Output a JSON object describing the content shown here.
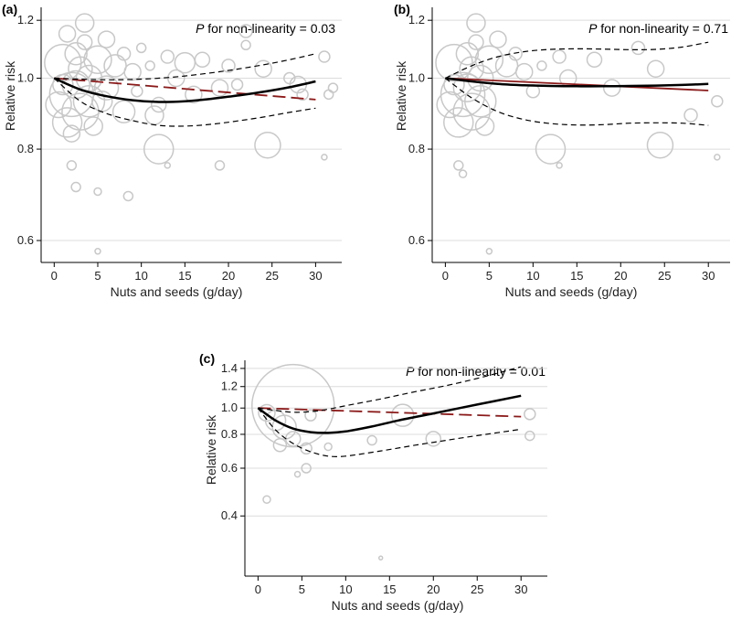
{
  "colors": {
    "spline": "#000000",
    "ci": "#000000",
    "linear": "#8b1a1a",
    "bubble": "#c8c8c8",
    "grid": "#dcdcdc"
  },
  "chart_data": [
    {
      "panel": "(a)",
      "type": "line",
      "scale": "log",
      "annotation_p": "P",
      "annotation_text": " for non-linearity = 0.03",
      "xlabel": "Nuts and seeds (g/day)",
      "ylabel": "Relative risk",
      "xlim": [
        -1.5,
        33
      ],
      "ylim": [
        0.56,
        1.25
      ],
      "xticks": [
        0,
        5,
        10,
        15,
        20,
        25,
        30
      ],
      "xtick_labels": [
        "0",
        "5",
        "10",
        "15",
        "20",
        "25",
        "30"
      ],
      "yticks": [
        0.6,
        0.8,
        1.0,
        1.2
      ],
      "ytick_labels": [
        "0.6",
        "0.8",
        "1.0",
        "1.2"
      ],
      "linear_dashed": true,
      "spline": [
        [
          0,
          1.0
        ],
        [
          3,
          0.965
        ],
        [
          6,
          0.945
        ],
        [
          9,
          0.933
        ],
        [
          12,
          0.928
        ],
        [
          15,
          0.93
        ],
        [
          18,
          0.937
        ],
        [
          21,
          0.947
        ],
        [
          24,
          0.958
        ],
        [
          27,
          0.972
        ],
        [
          30,
          0.99
        ]
      ],
      "ci_upper": [
        [
          0,
          1.0
        ],
        [
          3,
          0.997
        ],
        [
          6,
          0.995
        ],
        [
          9,
          0.996
        ],
        [
          12,
          1.0
        ],
        [
          15,
          1.007
        ],
        [
          18,
          1.017
        ],
        [
          21,
          1.029
        ],
        [
          24,
          1.043
        ],
        [
          27,
          1.06
        ],
        [
          30,
          1.08
        ]
      ],
      "ci_lower": [
        [
          0,
          1.0
        ],
        [
          3,
          0.93
        ],
        [
          6,
          0.895
        ],
        [
          9,
          0.875
        ],
        [
          12,
          0.862
        ],
        [
          15,
          0.86
        ],
        [
          18,
          0.865
        ],
        [
          21,
          0.874
        ],
        [
          24,
          0.885
        ],
        [
          27,
          0.898
        ],
        [
          30,
          0.91
        ]
      ],
      "linear": [
        [
          0,
          1.0
        ],
        [
          30,
          0.935
        ]
      ],
      "bubbles": [
        {
          "x": 0.5,
          "y": 0.92,
          "s": 14
        },
        {
          "x": 1,
          "y": 1.05,
          "s": 20
        },
        {
          "x": 1.5,
          "y": 0.87,
          "s": 16
        },
        {
          "x": 2,
          "y": 0.95,
          "s": 24
        },
        {
          "x": 2.5,
          "y": 1.08,
          "s": 12
        },
        {
          "x": 3,
          "y": 0.9,
          "s": 20
        },
        {
          "x": 3.5,
          "y": 1.12,
          "s": 8
        },
        {
          "x": 4,
          "y": 1.0,
          "s": 14
        },
        {
          "x": 1,
          "y": 0.98,
          "s": 11
        },
        {
          "x": 2,
          "y": 0.84,
          "s": 9
        },
        {
          "x": 3,
          "y": 1.03,
          "s": 13
        },
        {
          "x": 4,
          "y": 0.93,
          "s": 17
        },
        {
          "x": 5,
          "y": 1.06,
          "s": 15
        },
        {
          "x": 4.5,
          "y": 0.86,
          "s": 10
        },
        {
          "x": 3.5,
          "y": 1.19,
          "s": 10
        },
        {
          "x": 6,
          "y": 1.13,
          "s": 9
        },
        {
          "x": 6,
          "y": 0.97,
          "s": 13
        },
        {
          "x": 7,
          "y": 1.04,
          "s": 12
        },
        {
          "x": 1.5,
          "y": 1.15,
          "s": 9
        },
        {
          "x": 8,
          "y": 1.08,
          "s": 7
        },
        {
          "x": 8,
          "y": 0.9,
          "s": 12
        },
        {
          "x": 9,
          "y": 1.02,
          "s": 9
        },
        {
          "x": 9.5,
          "y": 0.96,
          "s": 6
        },
        {
          "x": 10,
          "y": 1.1,
          "s": 5
        },
        {
          "x": 11,
          "y": 1.04,
          "s": 5
        },
        {
          "x": 12,
          "y": 0.8,
          "s": 16
        },
        {
          "x": 12,
          "y": 0.92,
          "s": 8
        },
        {
          "x": 13,
          "y": 1.07,
          "s": 7
        },
        {
          "x": 14,
          "y": 1.0,
          "s": 9
        },
        {
          "x": 15,
          "y": 1.05,
          "s": 11
        },
        {
          "x": 16,
          "y": 0.95,
          "s": 9
        },
        {
          "x": 17,
          "y": 1.06,
          "s": 8
        },
        {
          "x": 19,
          "y": 0.97,
          "s": 9
        },
        {
          "x": 20,
          "y": 1.04,
          "s": 7
        },
        {
          "x": 21,
          "y": 0.98,
          "s": 6
        },
        {
          "x": 22,
          "y": 1.16,
          "s": 7
        },
        {
          "x": 22,
          "y": 1.11,
          "s": 5
        },
        {
          "x": 24,
          "y": 1.03,
          "s": 9
        },
        {
          "x": 24.5,
          "y": 0.81,
          "s": 14
        },
        {
          "x": 27,
          "y": 1.0,
          "s": 6
        },
        {
          "x": 28,
          "y": 0.98,
          "s": 9
        },
        {
          "x": 28.5,
          "y": 0.95,
          "s": 6
        },
        {
          "x": 31,
          "y": 1.07,
          "s": 6
        },
        {
          "x": 31.5,
          "y": 0.95,
          "s": 5
        },
        {
          "x": 32,
          "y": 0.97,
          "s": 5
        },
        {
          "x": 31,
          "y": 0.78,
          "s": 3
        },
        {
          "x": 2,
          "y": 0.76,
          "s": 5
        },
        {
          "x": 2.5,
          "y": 0.71,
          "s": 5
        },
        {
          "x": 5,
          "y": 0.7,
          "s": 4
        },
        {
          "x": 8.5,
          "y": 0.69,
          "s": 5
        },
        {
          "x": 5,
          "y": 0.58,
          "s": 3
        },
        {
          "x": 13,
          "y": 0.76,
          "s": 3
        },
        {
          "x": 19,
          "y": 0.76,
          "s": 5
        },
        {
          "x": 11.5,
          "y": 0.89,
          "s": 10
        },
        {
          "x": 2.5,
          "y": 0.98,
          "s": 15
        },
        {
          "x": 5.5,
          "y": 0.93,
          "s": 11
        }
      ]
    },
    {
      "panel": "(b)",
      "type": "line",
      "scale": "log",
      "annotation_p": "P",
      "annotation_text": " for non-linearity = 0.71",
      "xlabel": "Nuts and seeds (g/day)",
      "ylabel": "Relative risk",
      "xlim": [
        -1.5,
        33
      ],
      "ylim": [
        0.56,
        1.25
      ],
      "xticks": [
        0,
        5,
        10,
        15,
        20,
        25,
        30
      ],
      "xtick_labels": [
        "0",
        "5",
        "10",
        "15",
        "20",
        "25",
        "30"
      ],
      "yticks": [
        0.6,
        0.8,
        1.0,
        1.2
      ],
      "ytick_labels": [
        "0.6",
        "0.8",
        "1.0",
        "1.2"
      ],
      "linear_dashed": false,
      "spline": [
        [
          0,
          1.0
        ],
        [
          3,
          0.99
        ],
        [
          6,
          0.982
        ],
        [
          9,
          0.978
        ],
        [
          12,
          0.976
        ],
        [
          15,
          0.975
        ],
        [
          18,
          0.975
        ],
        [
          21,
          0.976
        ],
        [
          24,
          0.977
        ],
        [
          27,
          0.979
        ],
        [
          30,
          0.982
        ]
      ],
      "ci_upper": [
        [
          0,
          1.0
        ],
        [
          3,
          1.04
        ],
        [
          6,
          1.07
        ],
        [
          9,
          1.087
        ],
        [
          12,
          1.095
        ],
        [
          15,
          1.097
        ],
        [
          18,
          1.096
        ],
        [
          21,
          1.094
        ],
        [
          24,
          1.095
        ],
        [
          27,
          1.103
        ],
        [
          30,
          1.12
        ]
      ],
      "ci_lower": [
        [
          0,
          1.0
        ],
        [
          3,
          0.94
        ],
        [
          6,
          0.9
        ],
        [
          9,
          0.878
        ],
        [
          12,
          0.867
        ],
        [
          15,
          0.863
        ],
        [
          18,
          0.864
        ],
        [
          21,
          0.868
        ],
        [
          24,
          0.869
        ],
        [
          27,
          0.868
        ],
        [
          30,
          0.862
        ]
      ],
      "linear": [
        [
          0,
          1.0
        ],
        [
          30,
          0.962
        ]
      ],
      "bubbles": [
        {
          "x": 0.5,
          "y": 0.92,
          "s": 14
        },
        {
          "x": 1,
          "y": 1.05,
          "s": 20
        },
        {
          "x": 1.5,
          "y": 0.87,
          "s": 16
        },
        {
          "x": 2,
          "y": 0.95,
          "s": 24
        },
        {
          "x": 2.5,
          "y": 1.08,
          "s": 12
        },
        {
          "x": 3,
          "y": 0.9,
          "s": 20
        },
        {
          "x": 3.5,
          "y": 1.12,
          "s": 8
        },
        {
          "x": 4,
          "y": 1.0,
          "s": 14
        },
        {
          "x": 1,
          "y": 0.98,
          "s": 11
        },
        {
          "x": 3,
          "y": 1.03,
          "s": 13
        },
        {
          "x": 4,
          "y": 0.93,
          "s": 17
        },
        {
          "x": 5,
          "y": 1.06,
          "s": 15
        },
        {
          "x": 4.5,
          "y": 0.86,
          "s": 10
        },
        {
          "x": 3.5,
          "y": 1.19,
          "s": 10
        },
        {
          "x": 6,
          "y": 1.13,
          "s": 9
        },
        {
          "x": 7,
          "y": 1.04,
          "s": 12
        },
        {
          "x": 8,
          "y": 1.08,
          "s": 7
        },
        {
          "x": 9,
          "y": 1.02,
          "s": 9
        },
        {
          "x": 11,
          "y": 1.04,
          "s": 5
        },
        {
          "x": 12,
          "y": 0.8,
          "s": 16
        },
        {
          "x": 13,
          "y": 1.07,
          "s": 7
        },
        {
          "x": 14,
          "y": 1.0,
          "s": 9
        },
        {
          "x": 17,
          "y": 1.06,
          "s": 8
        },
        {
          "x": 19,
          "y": 0.97,
          "s": 9
        },
        {
          "x": 22,
          "y": 1.1,
          "s": 7
        },
        {
          "x": 24,
          "y": 1.03,
          "s": 9
        },
        {
          "x": 24.5,
          "y": 0.81,
          "s": 14
        },
        {
          "x": 28,
          "y": 0.89,
          "s": 7
        },
        {
          "x": 31,
          "y": 0.93,
          "s": 6
        },
        {
          "x": 31,
          "y": 0.78,
          "s": 3
        },
        {
          "x": 1.5,
          "y": 0.76,
          "s": 5
        },
        {
          "x": 2,
          "y": 0.74,
          "s": 4
        },
        {
          "x": 5,
          "y": 0.58,
          "s": 3
        },
        {
          "x": 13,
          "y": 0.76,
          "s": 3
        },
        {
          "x": 2.5,
          "y": 0.97,
          "s": 15
        },
        {
          "x": 10,
          "y": 0.96,
          "s": 7
        }
      ]
    },
    {
      "panel": "(c)",
      "type": "line",
      "scale": "log",
      "annotation_p": "P",
      "annotation_text": " for non-linearity = 0.01",
      "xlabel": "Nuts and seeds (g/day)",
      "ylabel": "Relative risk",
      "xlim": [
        -1.5,
        33
      ],
      "ylim": [
        0.24,
        1.5
      ],
      "xticks": [
        0,
        5,
        10,
        15,
        20,
        25,
        30
      ],
      "xtick_labels": [
        "0",
        "5",
        "10",
        "15",
        "20",
        "25",
        "30"
      ],
      "yticks": [
        0.4,
        0.6,
        0.8,
        1.0,
        1.2,
        1.4
      ],
      "ytick_labels": [
        "0.4",
        "0.6",
        "0.8",
        "1.0",
        "1.2",
        "1.4"
      ],
      "linear_dashed": true,
      "spline": [
        [
          0,
          1.0
        ],
        [
          2,
          0.9
        ],
        [
          4,
          0.84
        ],
        [
          6,
          0.815
        ],
        [
          8,
          0.81
        ],
        [
          10,
          0.82
        ],
        [
          13,
          0.855
        ],
        [
          16,
          0.9
        ],
        [
          20,
          0.955
        ],
        [
          25,
          1.03
        ],
        [
          30,
          1.11
        ]
      ],
      "ci_upper": [
        [
          0,
          1.0
        ],
        [
          2,
          0.98
        ],
        [
          4,
          0.965
        ],
        [
          6,
          0.97
        ],
        [
          8,
          0.99
        ],
        [
          10,
          1.02
        ],
        [
          14,
          1.08
        ],
        [
          18,
          1.15
        ],
        [
          22,
          1.22
        ],
        [
          26,
          1.31
        ],
        [
          30,
          1.42
        ]
      ],
      "ci_lower": [
        [
          0,
          1.0
        ],
        [
          2,
          0.83
        ],
        [
          4,
          0.74
        ],
        [
          6,
          0.69
        ],
        [
          8,
          0.665
        ],
        [
          10,
          0.665
        ],
        [
          14,
          0.695
        ],
        [
          18,
          0.73
        ],
        [
          22,
          0.765
        ],
        [
          26,
          0.8
        ],
        [
          30,
          0.835
        ]
      ],
      "linear": [
        [
          0,
          1.0
        ],
        [
          30,
          0.93
        ]
      ],
      "bubbles": [
        {
          "x": 4,
          "y": 1.02,
          "s": 45
        },
        {
          "x": 3,
          "y": 0.85,
          "s": 13
        },
        {
          "x": 2,
          "y": 0.9,
          "s": 11
        },
        {
          "x": 4,
          "y": 0.77,
          "s": 8
        },
        {
          "x": 1,
          "y": 0.96,
          "s": 9
        },
        {
          "x": 2.5,
          "y": 0.73,
          "s": 7
        },
        {
          "x": 5.5,
          "y": 0.71,
          "s": 6
        },
        {
          "x": 6,
          "y": 0.94,
          "s": 6
        },
        {
          "x": 5.5,
          "y": 0.6,
          "s": 5
        },
        {
          "x": 4.5,
          "y": 0.57,
          "s": 3
        },
        {
          "x": 1,
          "y": 0.46,
          "s": 4
        },
        {
          "x": 8,
          "y": 0.72,
          "s": 4
        },
        {
          "x": 13,
          "y": 0.76,
          "s": 5
        },
        {
          "x": 14,
          "y": 0.28,
          "s": 2
        },
        {
          "x": 16.5,
          "y": 0.94,
          "s": 12
        },
        {
          "x": 20,
          "y": 0.77,
          "s": 8
        },
        {
          "x": 31,
          "y": 0.95,
          "s": 6
        },
        {
          "x": 31,
          "y": 0.79,
          "s": 5
        }
      ]
    }
  ]
}
